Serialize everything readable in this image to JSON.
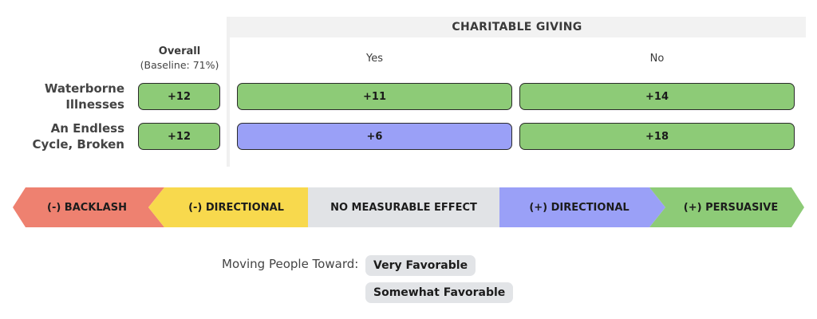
{
  "header": {
    "group_title": "CHARITABLE GIVING",
    "overall_label": "Overall",
    "overall_sublabel": "(Baseline: 71%)"
  },
  "chart_data": {
    "type": "table",
    "columns": [
      "Overall",
      "Yes",
      "No"
    ],
    "rows": [
      {
        "label": "Waterborne Illnesses",
        "label_lines": [
          "Waterborne",
          "Illnesses"
        ],
        "values": [
          "+12",
          "+11",
          "+14"
        ],
        "categories": [
          "persuasive",
          "persuasive",
          "persuasive"
        ]
      },
      {
        "label": "An Endless Cycle, Broken",
        "label_lines": [
          "An Endless",
          "Cycle, Broken"
        ],
        "values": [
          "+12",
          "+6",
          "+18"
        ],
        "categories": [
          "persuasive",
          "directional_pos",
          "persuasive"
        ]
      }
    ],
    "scale": [
      {
        "key": "backlash",
        "label": "(-) BACKLASH",
        "color": "#ee8170"
      },
      {
        "key": "directional_neg",
        "label": "(-) DIRECTIONAL",
        "color": "#f8d94d"
      },
      {
        "key": "none",
        "label": "NO MEASURABLE EFFECT",
        "color": "#e1e3e6"
      },
      {
        "key": "directional_pos",
        "label": "(+) DIRECTIONAL",
        "color": "#9aa0f7"
      },
      {
        "key": "persuasive",
        "label": "(+) PERSUASIVE",
        "color": "#8dcb77"
      }
    ]
  },
  "footer": {
    "label": "Moving People Toward:",
    "pills": [
      "Very Favorable",
      "Somewhat Favorable"
    ]
  }
}
